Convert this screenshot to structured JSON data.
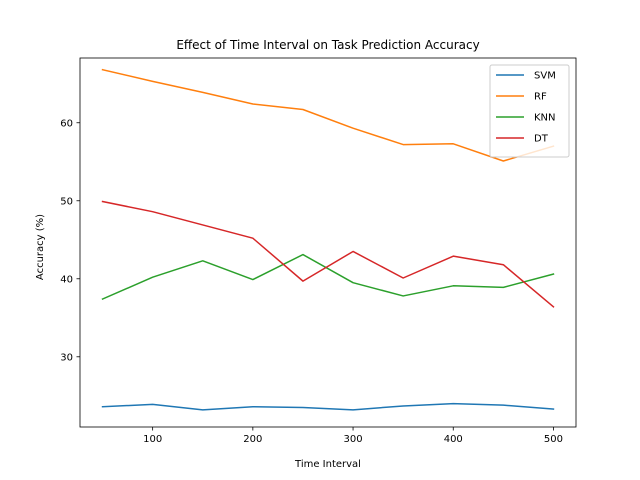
{
  "chart_data": {
    "type": "line",
    "title": "Effect of Time Interval on Task Prediction Accuracy",
    "xlabel": "Time Interval",
    "ylabel": "Accuracy (%)",
    "x": [
      50,
      100,
      150,
      200,
      250,
      300,
      350,
      400,
      450,
      500
    ],
    "xlim": [
      27.5,
      522.5
    ],
    "ylim": [
      21.0,
      68.3
    ],
    "xticks": [
      100,
      200,
      300,
      400,
      500
    ],
    "yticks": [
      30,
      40,
      50,
      60
    ],
    "legend_position": "top-right",
    "grid": false,
    "series": [
      {
        "name": "SVM",
        "color": "#1f77b4",
        "values": [
          23.6,
          23.9,
          23.2,
          23.6,
          23.5,
          23.2,
          23.7,
          24.0,
          23.8,
          23.3
        ]
      },
      {
        "name": "RF",
        "color": "#ff7f0e",
        "values": [
          66.8,
          65.3,
          63.9,
          62.4,
          61.7,
          59.3,
          57.2,
          57.3,
          55.1,
          57.0
        ]
      },
      {
        "name": "KNN",
        "color": "#2ca02c",
        "values": [
          37.4,
          40.2,
          42.3,
          39.9,
          43.1,
          39.5,
          37.8,
          39.1,
          38.9,
          40.6
        ]
      },
      {
        "name": "DT",
        "color": "#d62728",
        "values": [
          49.9,
          48.6,
          46.9,
          45.2,
          39.7,
          43.5,
          40.1,
          42.9,
          41.8,
          36.4
        ]
      }
    ]
  }
}
